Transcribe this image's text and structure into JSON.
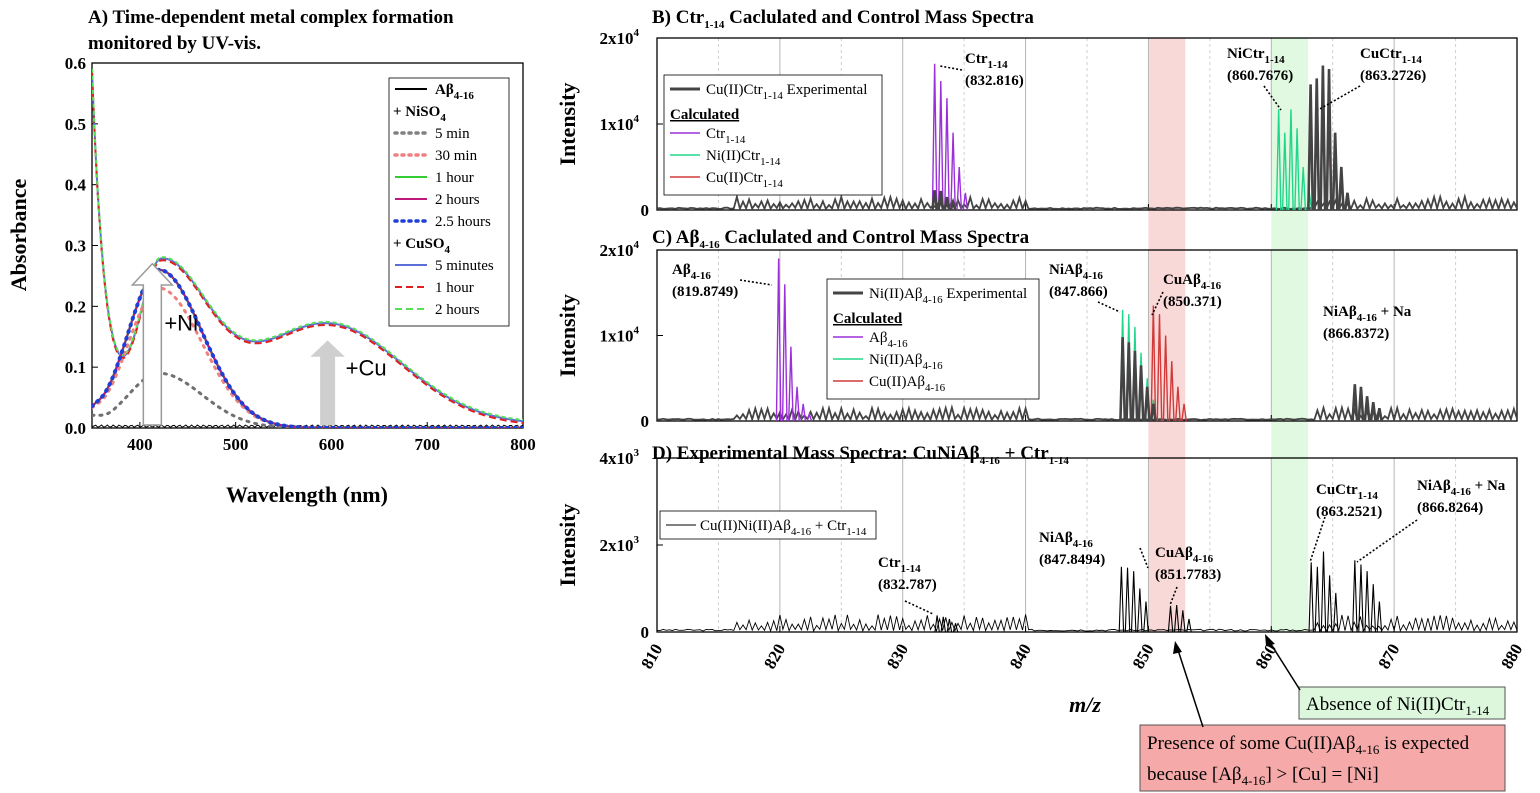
{
  "chart_data": [
    {
      "id": "A",
      "type": "line",
      "title_line1": "A) Time-dependent metal complex formation",
      "title_line2": "monitored by UV-vis.",
      "xlabel": "Wavelength (nm)",
      "ylabel": "Absorbance",
      "xlim": [
        350,
        800
      ],
      "ylim": [
        0,
        0.6
      ],
      "x_ticks": [
        "400",
        "500",
        "600",
        "700",
        "800"
      ],
      "y_ticks": [
        "0.0",
        "0.1",
        "0.2",
        "0.3",
        "0.4",
        "0.5",
        "0.6"
      ],
      "legend": [
        {
          "label": "Aβ",
          "sub": "4-16",
          "style": "solid",
          "color": "#000000"
        },
        {
          "header": "+ NiSO",
          "sub": "4"
        },
        {
          "label": "5 min",
          "style": "dot",
          "color": "#808080"
        },
        {
          "label": "30 min",
          "style": "dot",
          "color": "#f08080"
        },
        {
          "label": "1 hour",
          "style": "solid",
          "color": "#33cc33"
        },
        {
          "label": "2 hours",
          "style": "solid",
          "color": "#c0187a"
        },
        {
          "label": "2.5 hours",
          "style": "dot",
          "color": "#1f3fd6"
        },
        {
          "header": "+ CuSO",
          "sub": "4"
        },
        {
          "label": "5 minutes",
          "style": "solid",
          "color": "#5b6fd6"
        },
        {
          "label": "1 hour",
          "style": "dash",
          "color": "#e02020"
        },
        {
          "label": "2 hours",
          "style": "dash",
          "color": "#55e055"
        }
      ],
      "arrow_labels": {
        "ni": "+Ni",
        "cu": "+Cu"
      },
      "series_shape": {
        "ni_full": {
          "peak_x": 420,
          "peak_y": 0.26
        },
        "ni_5min": {
          "peak_x": 420,
          "peak_y": 0.09
        },
        "ni_30min": {
          "peak_x": 420,
          "peak_y": 0.23
        },
        "cu": {
          "peak1_x": 420,
          "peak1_y": 0.275,
          "min_x": 395,
          "min_y": 0.235,
          "peak2_x": 595,
          "peak2_y": 0.166,
          "start_y": 0.58
        },
        "apo_y": 0.003
      }
    },
    {
      "id": "B",
      "type": "line",
      "title": "B) Ctr",
      "title_sub": "1-14",
      "title_rest": " Caclulated and Control Mass Spectra",
      "ylabel": "Intensity",
      "ylim": [
        0,
        20000
      ],
      "y_ticks": [
        {
          "base": "2x10",
          "exp": "4"
        },
        {
          "base": "1x10",
          "exp": "4"
        },
        {
          "base": "0",
          "exp": ""
        }
      ],
      "legend_experimental": {
        "label": "Cu(II)Ctr",
        "sub": "1-14",
        "rest": " Experimental"
      },
      "legend_calc_header": "Calculated",
      "legend_calc": [
        {
          "label": "Ctr",
          "sub": "1-14",
          "color": "#9b30d9"
        },
        {
          "label": "Ni(II)Ctr",
          "sub": "1-14",
          "color": "#20d68a"
        },
        {
          "label": "Cu(II)Ctr",
          "sub": "1-14",
          "color": "#d03a3a"
        }
      ],
      "peaks": [
        {
          "series": "Ctr1-14",
          "start": 832.6,
          "heights": [
            17000,
            15000,
            13000,
            9000,
            5000,
            2000
          ]
        },
        {
          "series": "Ni(II)Ctr1-14",
          "start": 860.6,
          "heights": [
            11700,
            9000,
            11700,
            9500,
            5000,
            2000
          ]
        },
        {
          "series": "Cu(II)Ctr1-14",
          "start": 863.2,
          "heights": [
            12700,
            15000,
            14000,
            10000,
            6000,
            3000
          ]
        },
        {
          "series": "experimental",
          "start": 863.2,
          "heights": [
            14600,
            15300,
            16800,
            16400,
            9000,
            5000,
            2000
          ]
        }
      ],
      "annotations": [
        {
          "name": "Ctr",
          "sub": "1-14",
          "value": "(832.816)"
        },
        {
          "name": "NiCtr",
          "sub": "1-14",
          "value": "(860.7676)"
        },
        {
          "name": "CuCtr",
          "sub": "1-14",
          "value": "(863.2726)"
        }
      ]
    },
    {
      "id": "C",
      "type": "line",
      "title": "C) Aβ",
      "title_sub": "4-16",
      "title_rest": " Caclulated and Control Mass Spectra",
      "ylabel": "Intensity",
      "ylim": [
        0,
        20000
      ],
      "y_ticks": [
        {
          "base": "2x10",
          "exp": "4"
        },
        {
          "base": "1x10",
          "exp": "4"
        },
        {
          "base": "0",
          "exp": ""
        }
      ],
      "legend_experimental": {
        "label": "Ni(II)Aβ",
        "sub": "4-16",
        "rest": " Experimental"
      },
      "legend_calc_header": "Calculated",
      "legend_calc": [
        {
          "label": "Aβ",
          "sub": "4-16",
          "color": "#9b30d9"
        },
        {
          "label": "Ni(II)Aβ",
          "sub": "4-16",
          "color": "#20d68a"
        },
        {
          "label": "Cu(II)Aβ",
          "sub": "4-16",
          "color": "#d03a3a"
        }
      ],
      "peaks": [
        {
          "series": "Abeta4-16",
          "start": 819.9,
          "heights": [
            19000,
            16000,
            8700,
            4000,
            2000,
            800
          ]
        },
        {
          "series": "Ni(II)Abeta4-16",
          "start": 847.9,
          "heights": [
            13000,
            12500,
            11000,
            8000,
            5000,
            2500
          ]
        },
        {
          "series": "Cu(II)Abeta4-16",
          "start": 850.4,
          "heights": [
            13500,
            12500,
            10000,
            7000,
            4000,
            2000
          ]
        },
        {
          "series": "experimental",
          "start": 847.9,
          "heights": [
            9800,
            9200,
            8200,
            6500,
            4000,
            2000
          ]
        },
        {
          "series": "experimental_na",
          "start": 866.8,
          "heights": [
            4300,
            4000,
            2900,
            2200,
            1500
          ]
        }
      ],
      "annotations": [
        {
          "name": "Aβ",
          "sub": "4-16",
          "value": "(819.8749)"
        },
        {
          "name": "NiAβ",
          "sub": "4-16",
          "value": "(847.866)"
        },
        {
          "name": "CuAβ",
          "sub": "4-16",
          "value": "(850.371)"
        },
        {
          "name": "NiAβ",
          "sub": "4-16",
          "rest": " + Na",
          "value": "(866.8372)"
        }
      ]
    },
    {
      "id": "D",
      "type": "line",
      "title": "D) Experimental Mass Spectra: CuNiAβ",
      "title_sub": "4-16",
      "title_rest": " + Ctr",
      "title_sub2": "1-14",
      "ylabel": "Intensity",
      "xlabel": "m/z",
      "xlim": [
        810,
        880
      ],
      "x_ticks": [
        "810",
        "820",
        "830",
        "840",
        "850",
        "860",
        "870",
        "880"
      ],
      "ylim": [
        0,
        4000
      ],
      "y_ticks": [
        {
          "base": "4x10",
          "exp": "3"
        },
        {
          "base": "2x10",
          "exp": "3"
        },
        {
          "base": "0",
          "exp": ""
        }
      ],
      "legend": {
        "label": "Cu(II)Ni(II)Aβ",
        "sub": "4-16",
        "rest": " + Ctr",
        "sub2": "1-14"
      },
      "peaks": [
        {
          "start": 832.8,
          "heights": [
            380,
            350,
            300,
            200
          ]
        },
        {
          "start": 847.8,
          "heights": [
            1500,
            1480,
            1400,
            1000,
            700
          ]
        },
        {
          "start": 851.8,
          "heights": [
            600,
            620,
            500,
            300
          ]
        },
        {
          "start": 863.25,
          "heights": [
            1600,
            1500,
            1850,
            1300,
            900
          ]
        },
        {
          "start": 866.8,
          "heights": [
            1650,
            1550,
            1400,
            1100,
            700
          ]
        }
      ],
      "annotations": [
        {
          "name": "Ctr",
          "sub": "1-14",
          "value": "(832.787)"
        },
        {
          "name": "NiAβ",
          "sub": "4-16",
          "value": "(847.8494)"
        },
        {
          "name": "CuAβ",
          "sub": "4-16",
          "value": "(851.7783)"
        },
        {
          "name": "CuCtr",
          "sub": "1-14",
          "value": "(863.2521)"
        },
        {
          "name": "NiAβ",
          "sub": "4-16",
          "rest": " + Na",
          "value": "(866.8264)"
        }
      ]
    }
  ],
  "highlights": [
    {
      "from": 850,
      "to": 853,
      "color": "#f4b8b8"
    },
    {
      "from": 860,
      "to": 863,
      "color": "#c8f4c8"
    }
  ],
  "callouts": {
    "absence": {
      "text": "Absence of Ni(II)Ctr",
      "sub": "1-14",
      "bg": "#dcf7dc"
    },
    "presence": {
      "line1": "Presence of some Cu(II)Aβ",
      "sub": "4-16",
      "line1_rest": " is expected",
      "line2_a": "because [Aβ",
      "line2_sub": "4-16",
      "line2_b": "] > [Cu] = [Ni]",
      "bg": "#f6a9a9"
    }
  }
}
